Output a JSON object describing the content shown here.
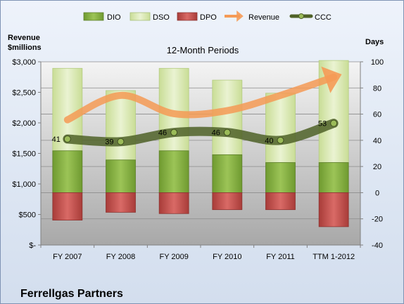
{
  "chart_data": {
    "type": "bar",
    "title": "12-Month Periods",
    "company": "Ferrellgas Partners",
    "left_axis_label_line1": "Revenue",
    "left_axis_label_line2": "$millions",
    "right_axis_label": "Days",
    "categories": [
      "FY 2007",
      "FY 2008",
      "FY 2009",
      "FY 2010",
      "FY 2011",
      "TTM 1-2012"
    ],
    "left_ticks": [
      "$-",
      "$500",
      "$1,000",
      "$1,500",
      "$2,000",
      "$2,500",
      "$3,000"
    ],
    "right_ticks": [
      "-40",
      "-20",
      "0",
      "20",
      "40",
      "60",
      "80",
      "100"
    ],
    "ylim_left": [
      0,
      3000
    ],
    "ylim_right": [
      -40,
      100
    ],
    "series": [
      {
        "name": "DIO",
        "axis": "right",
        "values": [
          32,
          25,
          32,
          29,
          23,
          23
        ]
      },
      {
        "name": "DSO",
        "axis": "right",
        "values": [
          63,
          53,
          63,
          57,
          53,
          78
        ]
      },
      {
        "name": "DPO",
        "axis": "right",
        "values": [
          -21,
          -15,
          -16,
          -13,
          -13,
          -26
        ]
      },
      {
        "name": "Revenue",
        "axis": "left",
        "values": [
          2050,
          2450,
          2150,
          2200,
          2450,
          2750
        ]
      },
      {
        "name": "CCC",
        "axis": "right",
        "values": [
          41,
          39,
          46,
          46,
          40,
          53
        ]
      }
    ],
    "ccc_labels": [
      "41",
      "39",
      "46",
      "46",
      "40",
      "53"
    ],
    "legend": {
      "placement": "top",
      "items": [
        "DIO",
        "DSO",
        "DPO",
        "Revenue",
        "CCC"
      ]
    },
    "colors": {
      "dio": "#7aa33a",
      "dso": "#d6e7ad",
      "dpo": "#c0504d",
      "revenue": "#f7a163",
      "ccc": "#4f6228"
    },
    "grid": true
  }
}
